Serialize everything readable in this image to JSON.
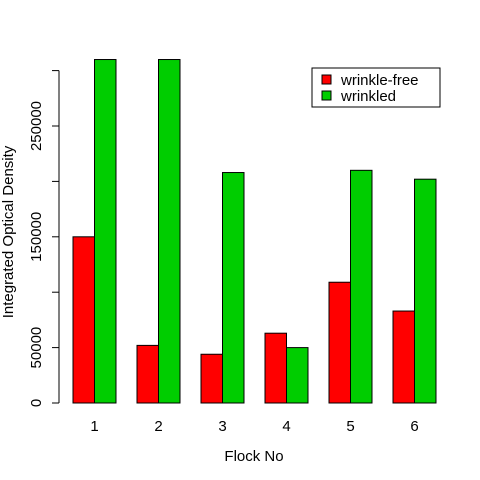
{
  "chart_data": {
    "type": "bar",
    "title": "",
    "xlabel": "Flock No",
    "ylabel": "Integrated Optical Density",
    "categories": [
      "1",
      "2",
      "3",
      "4",
      "5",
      "6"
    ],
    "ylim": [
      0,
      300000
    ],
    "yticks": [
      0,
      50000,
      150000,
      250000
    ],
    "ytick_labels": [
      "0",
      "50000",
      "150000",
      "250000"
    ],
    "grid": false,
    "legend": "top-right",
    "series": [
      {
        "name": "wrinkle-free",
        "color": "#ff0000",
        "values": [
          150000,
          52000,
          44000,
          63000,
          109000,
          83000
        ]
      },
      {
        "name": "wrinkled",
        "color": "#00cd00",
        "values": [
          310000,
          310000,
          208000,
          50000,
          210000,
          202000
        ]
      }
    ]
  }
}
